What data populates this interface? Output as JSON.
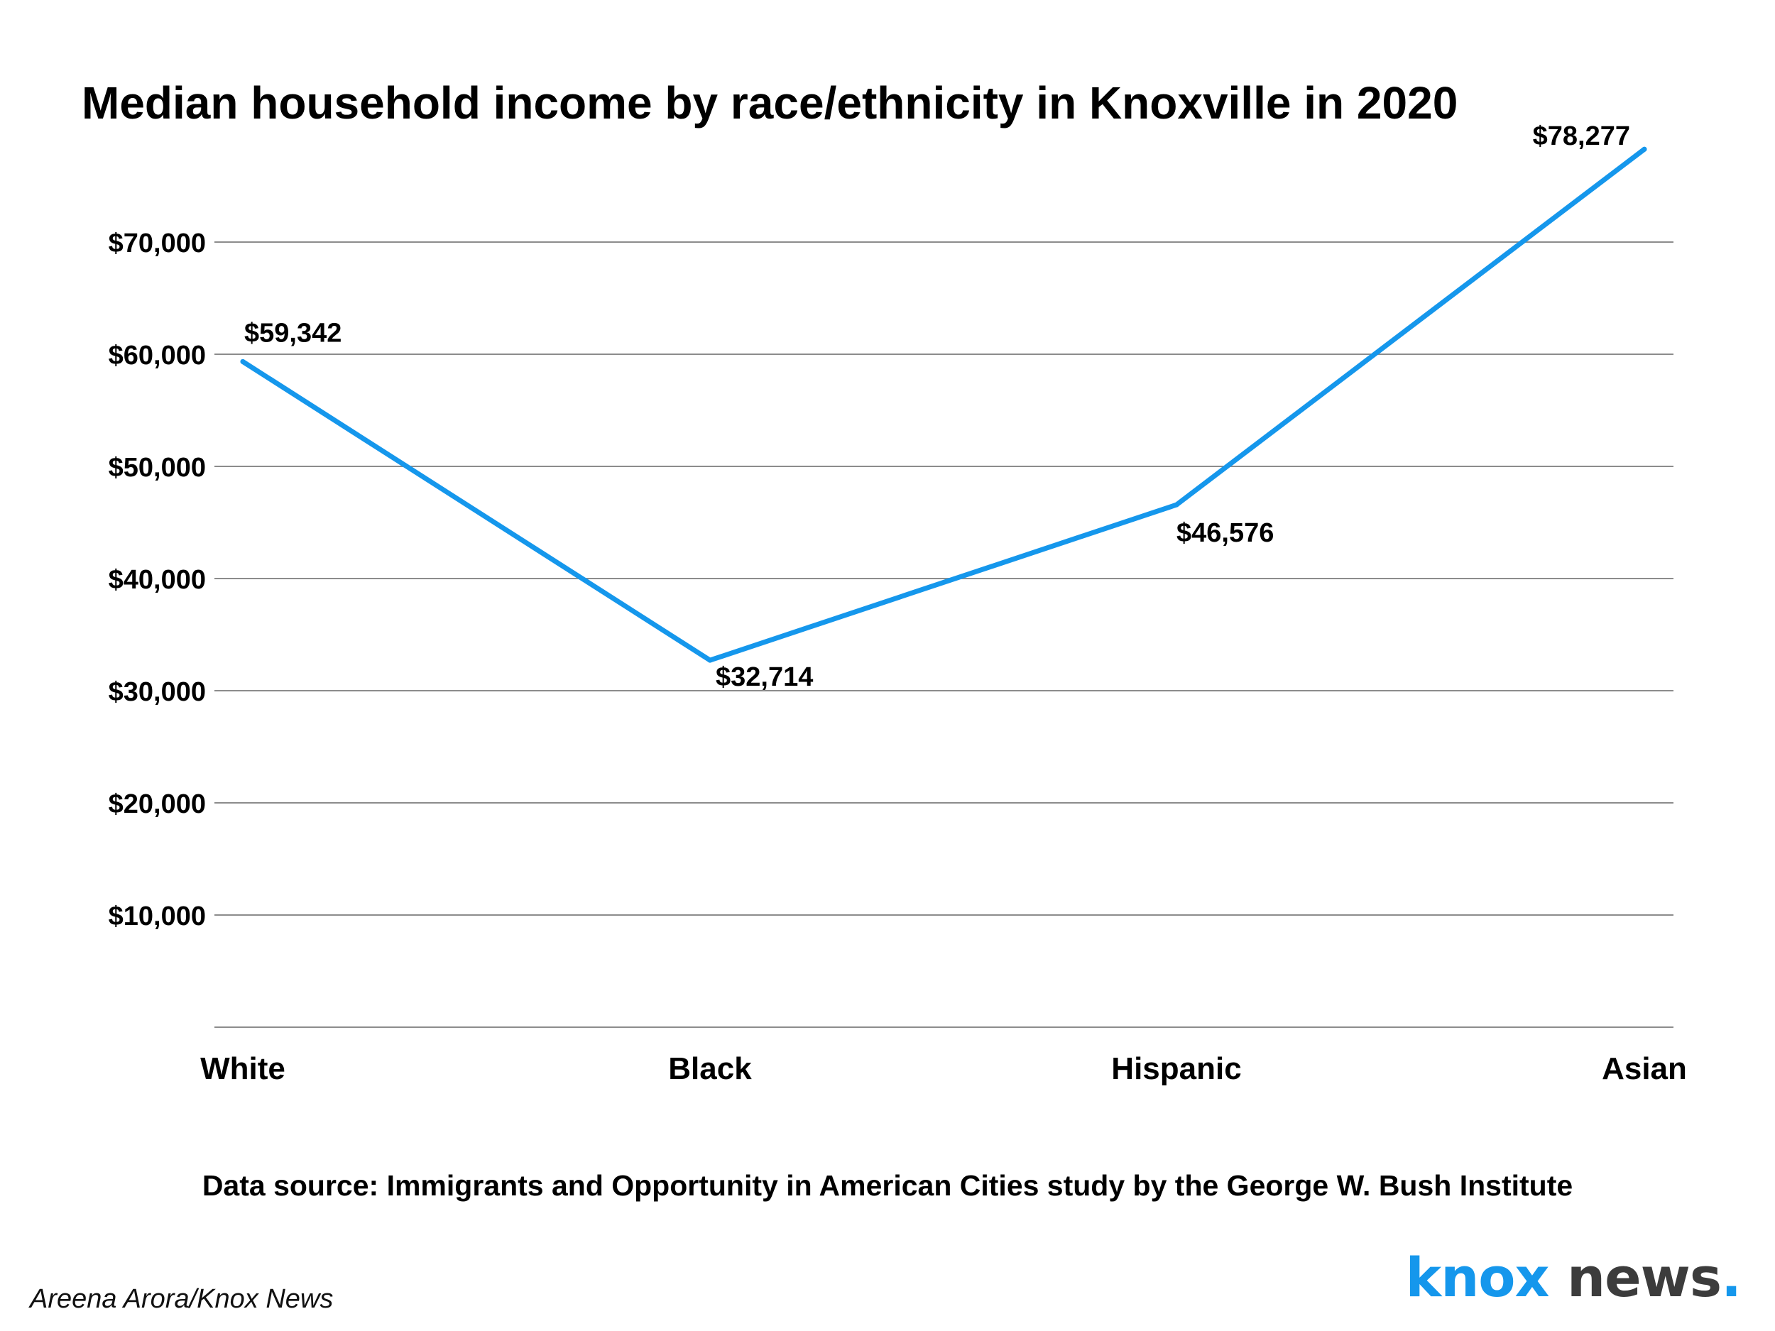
{
  "colors": {
    "line": "#1597ec",
    "grid": "#8c8c8c",
    "text": "#000000",
    "logo_accent": "#1597ec",
    "logo_dark": "#3c3c3c"
  },
  "chart_data": {
    "type": "line",
    "title": "Median household income by race/ethnicity in Knoxville in 2020",
    "xlabel": "",
    "ylabel": "",
    "categories": [
      "White",
      "Black",
      "Hispanic",
      "Asian"
    ],
    "series": [
      {
        "values": [
          59342,
          32714,
          46576,
          78277
        ]
      }
    ],
    "data_labels": [
      "$59,342",
      "$32,714",
      "$46,576",
      "$78,277"
    ],
    "y_ticks": [
      10000,
      20000,
      30000,
      40000,
      50000,
      60000,
      70000
    ],
    "y_tick_labels": [
      "$10,000",
      "$20,000",
      "$30,000",
      "$40,000",
      "$50,000",
      "$60,000",
      "$70,000"
    ],
    "ylim": [
      0,
      80000
    ],
    "grid": true,
    "legend": "none"
  },
  "footer": {
    "source": "Data source: Immigrants and Opportunity in American Cities study by the George W. Bush Institute",
    "credit": "Areena Arora/Knox News",
    "logo_text": "knox news."
  }
}
